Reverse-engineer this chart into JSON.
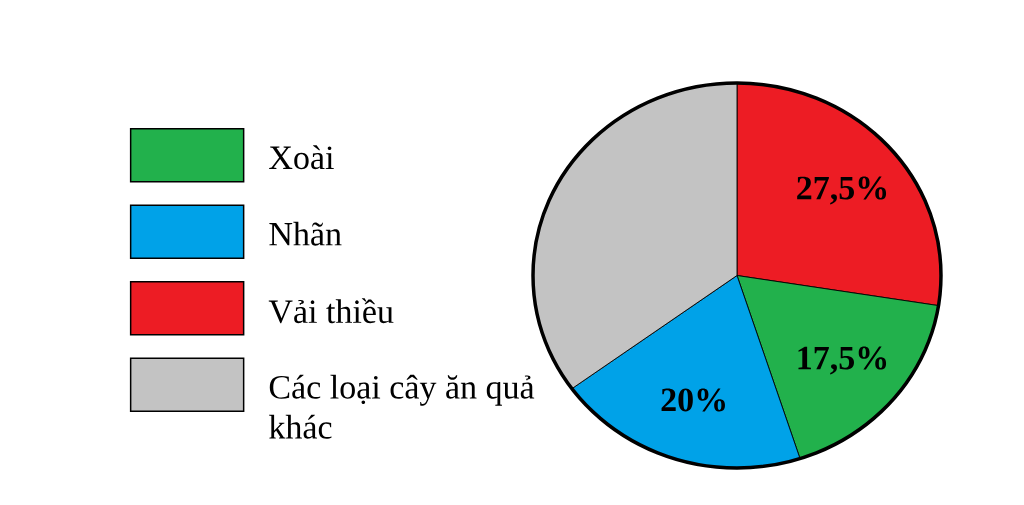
{
  "chart_data": {
    "type": "pie",
    "categories": [
      "Xoài",
      "Nhãn",
      "Vải thiều",
      "Các loại cây ăn quả khác"
    ],
    "values": [
      17.5,
      20,
      27.5,
      35
    ],
    "colors": [
      "#22b14c",
      "#00a2e8",
      "#ed1c24",
      "#c3c3c3"
    ],
    "value_labels": [
      "17,5%",
      "20%",
      "27,5%",
      null
    ],
    "legend": "left"
  }
}
